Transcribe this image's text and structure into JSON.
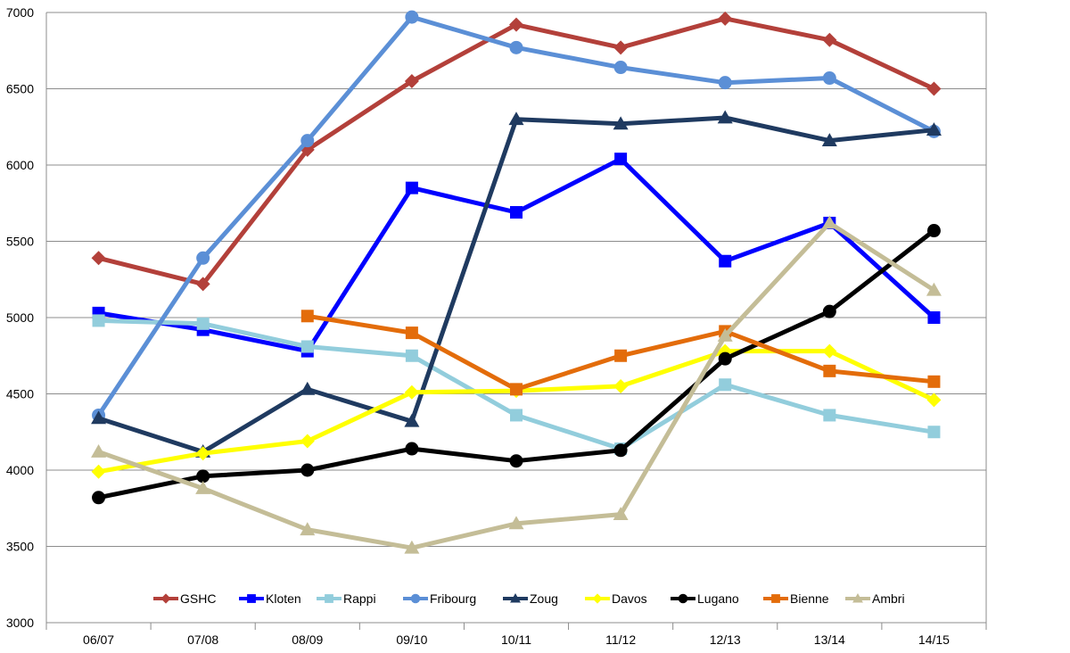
{
  "chart_data": {
    "type": "line",
    "title": "",
    "xlabel": "",
    "ylabel": "",
    "ylim": [
      3000,
      7000
    ],
    "yticks": [
      3000,
      3500,
      4000,
      4500,
      5000,
      5500,
      6000,
      6500,
      7000
    ],
    "grid": true,
    "legend_position": "bottom",
    "categories": [
      "06/07",
      "07/08",
      "08/09",
      "09/10",
      "10/11",
      "11/12",
      "12/13",
      "13/14",
      "14/15"
    ],
    "series": [
      {
        "name": "GSHC",
        "color": "#b3403a",
        "marker": "diamond",
        "values": [
          5390,
          5220,
          6100,
          6550,
          6920,
          6770,
          6960,
          6820,
          6500
        ]
      },
      {
        "name": "Kloten",
        "color": "#0000ff",
        "marker": "square",
        "values": [
          5030,
          4920,
          4780,
          5850,
          5690,
          6040,
          5370,
          5620,
          5000
        ]
      },
      {
        "name": "Rappi",
        "color": "#92cddc",
        "marker": "square",
        "values": [
          4980,
          4960,
          4810,
          4750,
          4360,
          4140,
          4560,
          4360,
          4250
        ]
      },
      {
        "name": "Fribourg",
        "color": "#5b8fd6",
        "marker": "circle",
        "values": [
          4360,
          5390,
          6160,
          6970,
          6770,
          6640,
          6540,
          6570,
          6220
        ]
      },
      {
        "name": "Zoug",
        "color": "#1f3a60",
        "marker": "triangle",
        "values": [
          4340,
          4120,
          4530,
          4320,
          6300,
          6270,
          6310,
          6160,
          6230
        ]
      },
      {
        "name": "Davos",
        "color": "#ffff00",
        "marker": "diamond",
        "values": [
          3990,
          4110,
          4190,
          4510,
          4520,
          4550,
          4780,
          4780,
          4460
        ]
      },
      {
        "name": "Lugano",
        "color": "#000000",
        "marker": "circle",
        "values": [
          3820,
          3960,
          4000,
          4140,
          4060,
          4130,
          4730,
          5040,
          5570
        ]
      },
      {
        "name": "Bienne",
        "color": "#e36c0a",
        "marker": "square",
        "values": [
          null,
          null,
          5010,
          4900,
          4530,
          4750,
          4910,
          4650,
          4580
        ]
      },
      {
        "name": "Ambri",
        "color": "#c4bd97",
        "marker": "triangle",
        "values": [
          4120,
          3880,
          3610,
          3490,
          3650,
          3710,
          4880,
          5620,
          5180
        ]
      }
    ]
  }
}
